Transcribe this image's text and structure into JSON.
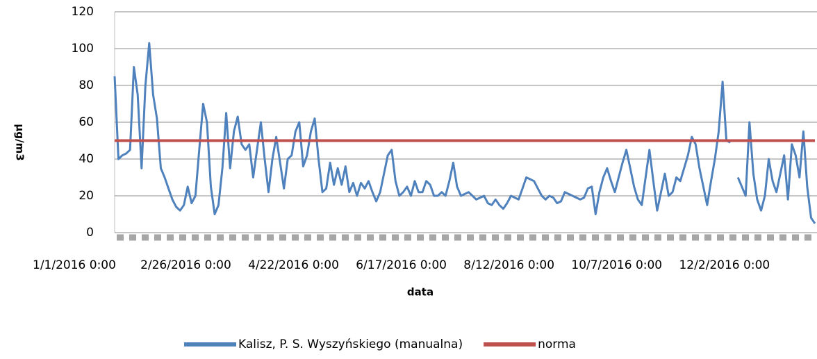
{
  "chart_data": {
    "type": "line",
    "categories": [
      "1/1/2016 0:00",
      null,
      null,
      null,
      null,
      null,
      null,
      null,
      null,
      null,
      null,
      null,
      null,
      null,
      null,
      null,
      null,
      null,
      null,
      null,
      null,
      null,
      null,
      null,
      null,
      null,
      null,
      null,
      "2/26/2016 0:00",
      null,
      null,
      null,
      null,
      null,
      null,
      null,
      null,
      null,
      null,
      null,
      null,
      null,
      null,
      null,
      null,
      null,
      null,
      null,
      null,
      null,
      null,
      null,
      null,
      null,
      null,
      null,
      "4/22/2016 0:00",
      null,
      null,
      null,
      null,
      null,
      null,
      null,
      null,
      null,
      null,
      null,
      null,
      null,
      null,
      null,
      null,
      null,
      null,
      null,
      null,
      null,
      null,
      null,
      null,
      null,
      null,
      null,
      "6/17/2016 0:00",
      null,
      null,
      null,
      null,
      null,
      null,
      null,
      null,
      null,
      null,
      null,
      null,
      null,
      null,
      null,
      null,
      null,
      null,
      null,
      null,
      null,
      null,
      null,
      null,
      null,
      null,
      null,
      "8/12/2016 0:00",
      null,
      null,
      null,
      null,
      null,
      null,
      null,
      null,
      null,
      null,
      null,
      null,
      null,
      null,
      null,
      null,
      null,
      null,
      null,
      null,
      null,
      null,
      null,
      null,
      null,
      null,
      null,
      "10/7/2016 0:00",
      null,
      null,
      null,
      null,
      null,
      null,
      null,
      null,
      null,
      null,
      null,
      null,
      null,
      null,
      null,
      null,
      null,
      null,
      null,
      null,
      null,
      null,
      null,
      null,
      null,
      null,
      null,
      "12/2/2016 0:00",
      null,
      null,
      null,
      null,
      null,
      null,
      null,
      null,
      null,
      null,
      null,
      null,
      null,
      null
    ],
    "series": [
      {
        "name": "Kalisz, P. S. Wyszyńskiego (manualna)",
        "color": "#4f81bd",
        "values": [
          85,
          40,
          42,
          43,
          45,
          90,
          75,
          35,
          80,
          103,
          75,
          62,
          35,
          30,
          24,
          18,
          14,
          12,
          15,
          25,
          16,
          20,
          45,
          70,
          60,
          25,
          10,
          15,
          35,
          65,
          35,
          55,
          63,
          48,
          45,
          48,
          30,
          45,
          60,
          40,
          22,
          40,
          52,
          38,
          24,
          40,
          42,
          55,
          60,
          36,
          42,
          55,
          62,
          40,
          22,
          24,
          38,
          26,
          35,
          26,
          36,
          22,
          27,
          20,
          27,
          24,
          28,
          22,
          17,
          22,
          32,
          42,
          45,
          28,
          20,
          22,
          25,
          20,
          28,
          22,
          22,
          28,
          26,
          20,
          20,
          22,
          20,
          28,
          38,
          25,
          20,
          21,
          22,
          20,
          18,
          19,
          20,
          16,
          15,
          18,
          15,
          13,
          16,
          20,
          19,
          18,
          24,
          30,
          29,
          28,
          24,
          20,
          18,
          20,
          19,
          16,
          17,
          22,
          21,
          20,
          19,
          18,
          19,
          24,
          25,
          10,
          22,
          30,
          35,
          28,
          22,
          30,
          38,
          45,
          35,
          25,
          18,
          15,
          30,
          45,
          28,
          12,
          22,
          32,
          20,
          22,
          30,
          28,
          35,
          42,
          52,
          48,
          35,
          25,
          15,
          28,
          40,
          55,
          82,
          50,
          49,
          null,
          30,
          25,
          20,
          60,
          32,
          18,
          12,
          20,
          40,
          28,
          22,
          32,
          42,
          18,
          48,
          42,
          30,
          55,
          25,
          8,
          5
        ]
      },
      {
        "name": "norma",
        "color": "#c0504d",
        "values": [
          50,
          50,
          50,
          50,
          50,
          50,
          50,
          50,
          50,
          50,
          50,
          50,
          50,
          50,
          50,
          50,
          50,
          50,
          50,
          50,
          50,
          50,
          50,
          50,
          50,
          50,
          50,
          50,
          50,
          50,
          50,
          50,
          50,
          50,
          50,
          50,
          50,
          50,
          50,
          50,
          50,
          50,
          50,
          50,
          50,
          50,
          50,
          50,
          50,
          50,
          50,
          50,
          50,
          50,
          50,
          50,
          50,
          50,
          50,
          50,
          50,
          50,
          50,
          50,
          50,
          50,
          50,
          50,
          50,
          50,
          50,
          50,
          50,
          50,
          50,
          50,
          50,
          50,
          50,
          50,
          50,
          50,
          50,
          50,
          50,
          50,
          50,
          50,
          50,
          50,
          50,
          50,
          50,
          50,
          50,
          50,
          50,
          50,
          50,
          50,
          50,
          50,
          50,
          50,
          50,
          50,
          50,
          50,
          50,
          50,
          50,
          50,
          50,
          50,
          50,
          50,
          50,
          50,
          50,
          50,
          50,
          50,
          50,
          50,
          50,
          50,
          50,
          50,
          50,
          50,
          50,
          50,
          50,
          50,
          50,
          50,
          50,
          50,
          50,
          50,
          50,
          50,
          50,
          50,
          50,
          50,
          50,
          50,
          50,
          50,
          50,
          50,
          50,
          50,
          50,
          50,
          50,
          50,
          50,
          50,
          50,
          50,
          50,
          50,
          50,
          50,
          50,
          50,
          50,
          50,
          50,
          50,
          50,
          50,
          50,
          50,
          50,
          50,
          50,
          50,
          50,
          50,
          50
        ]
      }
    ],
    "xlabel": "data",
    "ylabel": "µg/m3",
    "ylim": [
      0,
      120
    ],
    "yticks": [
      0,
      20,
      40,
      60,
      80,
      100,
      120
    ],
    "grid": true,
    "legend": "bottom"
  }
}
